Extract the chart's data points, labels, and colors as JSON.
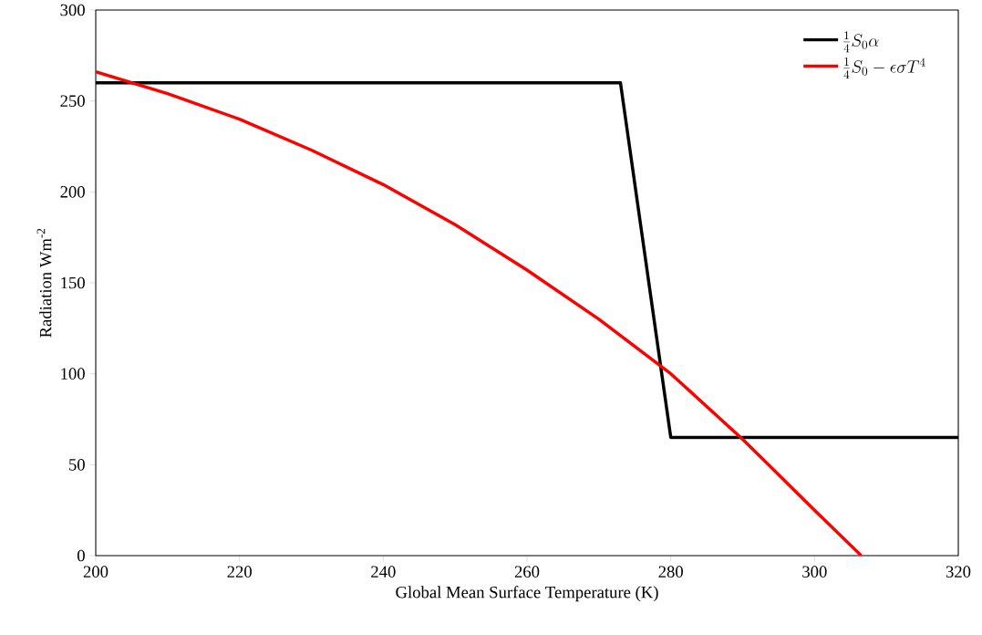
{
  "chart_data": {
    "type": "line",
    "xlabel": "Global Mean Surface Temperature (K)",
    "ylabel": "Radiation Wm$^{-2}$",
    "xlim": [
      200,
      320
    ],
    "xticks": [
      200,
      220,
      240,
      260,
      280,
      300,
      320
    ],
    "ylim": [
      0,
      300
    ],
    "yticks": [
      0,
      50,
      100,
      150,
      200,
      250,
      300
    ],
    "grid": false,
    "legend": "top right",
    "marker": "none",
    "line_style": "solid",
    "series": [
      {
        "name": "\\frac{1}{4}S_0\\alpha",
        "color": "#000000",
        "x": [
          200,
          273,
          280,
          320
        ],
        "values": [
          260,
          260,
          65,
          65
        ]
      },
      {
        "name": "\\frac{1}{4}S_0-\\epsilon\\sigma T^4",
        "color": "#ff0000",
        "x": [
          200,
          210,
          220,
          230,
          240,
          250,
          260,
          270,
          280,
          290,
          300,
          306.5
        ],
        "values": [
          266,
          254,
          240,
          223,
          204,
          182,
          157,
          130,
          100,
          64,
          25,
          0
        ]
      }
    ]
  }
}
